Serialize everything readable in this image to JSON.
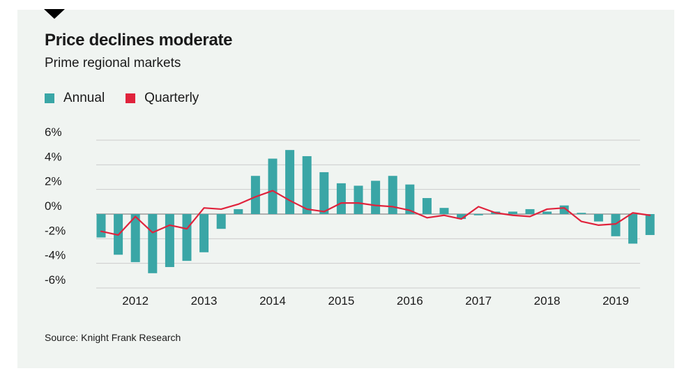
{
  "title": "Price declines moderate",
  "subtitle": "Prime regional markets",
  "source": "Source: Knight Frank Research",
  "colors": {
    "annual": "#3aa6a6",
    "quarterly": "#e0233c",
    "grid": "#cccccc",
    "axis": "#9a9a9a"
  },
  "chart_data": {
    "type": "bar",
    "legend": [
      {
        "name": "Annual",
        "kind": "bar"
      },
      {
        "name": "Quarterly",
        "kind": "line"
      }
    ],
    "yticks": [
      "6%",
      "4%",
      "2%",
      "0%",
      "-2%",
      "-4%",
      "-6%"
    ],
    "ylim": [
      -6,
      6
    ],
    "xticks": [
      {
        "label": "2012",
        "index": 2
      },
      {
        "label": "2013",
        "index": 6
      },
      {
        "label": "2014",
        "index": 10
      },
      {
        "label": "2015",
        "index": 14
      },
      {
        "label": "2016",
        "index": 18
      },
      {
        "label": "2017",
        "index": 22
      },
      {
        "label": "2018",
        "index": 26
      },
      {
        "label": "2019",
        "index": 30
      }
    ],
    "series": [
      {
        "name": "Annual",
        "type": "bar",
        "values": [
          -1.9,
          -3.3,
          -3.9,
          -4.8,
          -4.3,
          -3.8,
          -3.1,
          -1.2,
          0.4,
          3.1,
          4.5,
          5.2,
          4.7,
          3.4,
          2.5,
          2.3,
          2.7,
          3.1,
          2.4,
          1.3,
          0.5,
          -0.4,
          -0.1,
          0.2,
          0.2,
          0.4,
          0.2,
          0.7,
          0.1,
          -0.6,
          -1.8,
          -2.4,
          -1.7
        ]
      },
      {
        "name": "Quarterly",
        "type": "line",
        "values": [
          -1.4,
          -1.7,
          -0.2,
          -1.5,
          -0.9,
          -1.2,
          0.5,
          0.4,
          0.8,
          1.4,
          1.9,
          1.1,
          0.4,
          0.2,
          0.9,
          0.9,
          0.7,
          0.6,
          0.3,
          -0.3,
          -0.1,
          -0.4,
          0.6,
          0.1,
          -0.1,
          -0.2,
          0.4,
          0.5,
          -0.6,
          -0.9,
          -0.8,
          0.1,
          -0.1
        ]
      }
    ]
  }
}
